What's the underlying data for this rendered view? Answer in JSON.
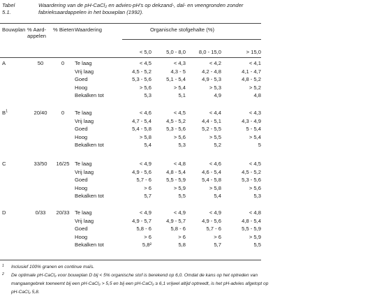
{
  "caption": {
    "number": "Tabel 5.1.",
    "text": "Waardering van de pH-CaCl₂ en advies-pH's op dekzand-, dal- en veengronden zonder fabrieksaardappelen in het bouwplan (1992)."
  },
  "header": {
    "col_bouwplan": "Bouwplan",
    "col_aard": "% Aard-\nappelen",
    "col_bieten": "% Bieten",
    "col_waardering": "Waardering",
    "group_label": "Organische stofgehalte (%)",
    "om_classes": [
      "< 5,0",
      "5,0 - 8,0",
      "8,0 - 15,0",
      "> 15,0"
    ]
  },
  "groups": [
    {
      "bouwplan": "A",
      "sup": "",
      "aard": "50",
      "bieten": "0",
      "rows": [
        {
          "label": "Te laag",
          "v": [
            "< 4,5",
            "< 4,3",
            "< 4,2",
            "< 4,1"
          ]
        },
        {
          "label": "Vrij laag",
          "v": [
            "4,5 - 5,2",
            "4,3 - 5",
            "4,2 - 4,8",
            "4,1 - 4,7"
          ]
        },
        {
          "label": "Goed",
          "v": [
            "5,3 - 5,6",
            "5,1 - 5,4",
            "4,9 - 5,3",
            "4,8 - 5,2"
          ]
        },
        {
          "label": "Hoog",
          "v": [
            "> 5,6",
            "> 5,4",
            "> 5,3",
            "> 5,2"
          ]
        },
        {
          "label": "Bekalken tot",
          "v": [
            "5,3",
            "5,1",
            "4,9",
            "4,8"
          ]
        }
      ]
    },
    {
      "bouwplan": "B",
      "sup": "1",
      "aard": "20/40",
      "bieten": "0",
      "rows": [
        {
          "label": "Te laag",
          "v": [
            "< 4,6",
            "< 4,5",
            "< 4,4",
            "< 4,3"
          ]
        },
        {
          "label": "Vrij laag",
          "v": [
            "4,7 - 5,4",
            "4,5 - 5,2",
            "4,4 - 5,1",
            "4,3 - 4,9"
          ]
        },
        {
          "label": "Goed",
          "v": [
            "5,4 - 5,8",
            "5,3 - 5,6",
            "5,2 - 5,5",
            "5 - 5,4"
          ]
        },
        {
          "label": "Hoog",
          "v": [
            "> 5,8",
            "> 5,6",
            "> 5,5",
            "> 5,4"
          ]
        },
        {
          "label": "Bekalken tot",
          "v": [
            "5,4",
            "5,3",
            "5,2",
            "5"
          ]
        }
      ]
    },
    {
      "bouwplan": "C",
      "sup": "",
      "aard": "33/50",
      "bieten": "16/25",
      "rows": [
        {
          "label": "Te laag",
          "v": [
            "< 4,9",
            "< 4,8",
            "< 4,6",
            "< 4,5"
          ]
        },
        {
          "label": "Vrij laag",
          "v": [
            "4,9 - 5,6",
            "4,8 - 5,4",
            "4,6 - 5,4",
            "4,5 - 5,2"
          ]
        },
        {
          "label": "Goed",
          "v": [
            "5,7 - 6",
            "5,5 - 5,9",
            "5,4 - 5,8",
            "5,3 - 5,6"
          ]
        },
        {
          "label": "Hoog",
          "v": [
            "> 6",
            "> 5,9",
            "> 5,8",
            "> 5,6"
          ]
        },
        {
          "label": "Bekalken tot",
          "v": [
            "5,7",
            "5,5",
            "5,4",
            "5,3"
          ]
        }
      ]
    },
    {
      "bouwplan": "D",
      "sup": "",
      "aard": "0/33",
      "bieten": "20/33",
      "rows": [
        {
          "label": "Te laag",
          "v": [
            "< 4,9",
            "< 4,9",
            "< 4,9",
            "< 4,8"
          ]
        },
        {
          "label": "Vrij laag",
          "v": [
            "4,9 - 5,7",
            "4,9 - 5,7",
            "4,9 - 5,6",
            "4,8 - 5,4"
          ]
        },
        {
          "label": "Goed",
          "v": [
            "5,8 - 6",
            "5,8 - 6",
            "5,7 - 6",
            "5,5 - 5,9"
          ]
        },
        {
          "label": "Hoog",
          "v": [
            "> 6",
            "> 6",
            "> 6",
            "> 5,9"
          ]
        },
        {
          "label": "Bekalken tot",
          "v": [
            "5,8²",
            "5,8",
            "5,7",
            "5,5"
          ]
        }
      ]
    }
  ],
  "footnotes": [
    {
      "mark": "1",
      "text": "Inclusief 100% granen en continue maïs."
    },
    {
      "mark": "2",
      "text": "De optimale pH-CaCl₂ voor bouwplan D bij < 5% organische stof is berekend op 6,0. Omdat de kans op het optreden van"
    },
    {
      "mark": "",
      "text": "mangaangebrek toeneemt bij een pH-CaCl₂ > 5,5 en bij een pH-CaCl₂ ≥ 6,1 vrijwel altijd optreedt, is het pH-advies afgetopt op"
    },
    {
      "mark": "",
      "text": "pH-CaCl₂ 5,8."
    }
  ]
}
